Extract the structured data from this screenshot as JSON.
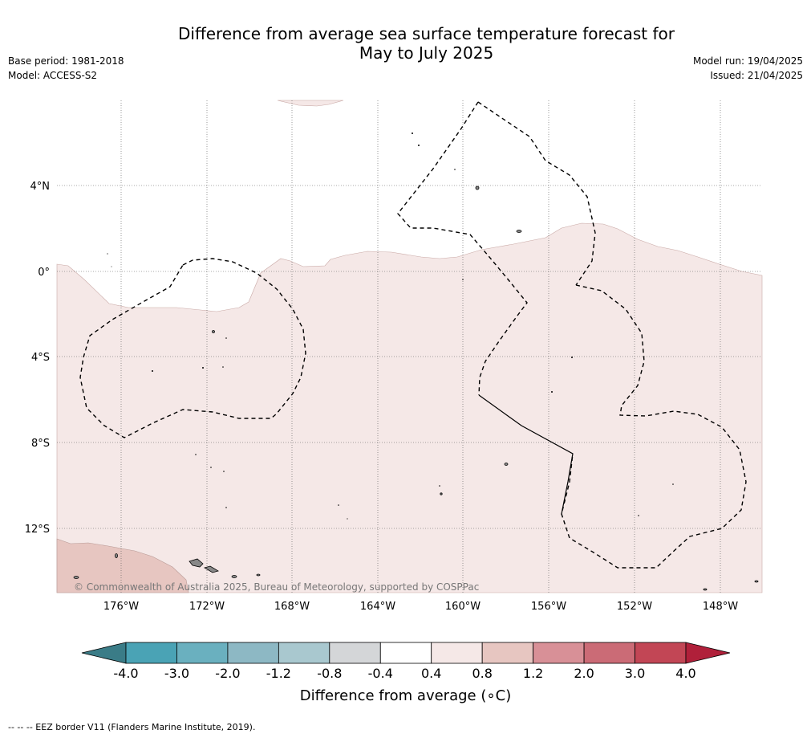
{
  "title_line1": "Difference from average sea surface temperature forecast for",
  "title_line2": "May to July 2025",
  "base_period": "Base period: 1981-2018",
  "model": "Model: ACCESS-S2",
  "model_run": "Model run: 19/04/2025",
  "issued": "Issued: 21/04/2025",
  "copyright": "© Commonwealth of Australia 2025, Bureau of Meteorology, supported by COSPPac",
  "footnote": "--  --  -- EEZ border V11 (Flanders Marine Institute, 2019).",
  "map": {
    "lat_labels": [
      "4°N",
      "0°",
      "4°S",
      "8°S",
      "12°S"
    ],
    "lon_labels": [
      "176°W",
      "172°W",
      "168°W",
      "164°W",
      "160°W",
      "156°W",
      "152°W",
      "148°W"
    ]
  },
  "colorbar": {
    "label": "Difference from average (∘C)",
    "label_text": "Difference from average (",
    "label_unit": "∘C",
    "ticks": [
      "-4.0",
      "-3.0",
      "-2.0",
      "-1.2",
      "-0.8",
      "-0.4",
      "0.4",
      "0.8",
      "1.2",
      "2.0",
      "3.0",
      "4.0"
    ],
    "colors": [
      "#3a7c87",
      "#4aa3b5",
      "#6ab0bf",
      "#8db8c4",
      "#a9c8cf",
      "#d4d6d8",
      "#ffffff",
      "#f5e8e7",
      "#e7c6c1",
      "#d89097",
      "#cb6b76",
      "#c24655",
      "#b0203a"
    ]
  }
}
